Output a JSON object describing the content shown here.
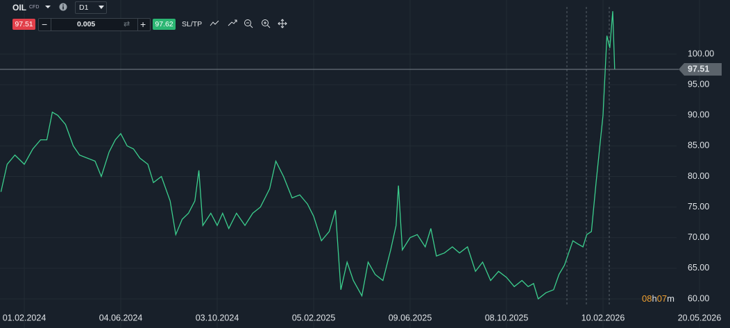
{
  "toolbar": {
    "symbol": "OIL",
    "kind": "CFD",
    "timeframe": "D1",
    "sell": "97.51",
    "volume": "0.005",
    "buy": "97.62",
    "sltp": "SL/TP"
  },
  "countdown": {
    "hours": "08",
    "hours_unit": "h",
    "minutes": "07",
    "minutes_unit": "m"
  },
  "chart_data": {
    "type": "line",
    "color": "#3ccf8e",
    "grid": true,
    "last_price": 97.51,
    "x": [
      "2024-01-02",
      "2024-01-10",
      "2024-01-20",
      "2024-02-01",
      "2024-02-12",
      "2024-02-22",
      "2024-03-01",
      "2024-03-08",
      "2024-03-15",
      "2024-03-25",
      "2024-04-04",
      "2024-04-12",
      "2024-04-22",
      "2024-05-02",
      "2024-05-10",
      "2024-05-20",
      "2024-05-28",
      "2024-06-04",
      "2024-06-12",
      "2024-06-20",
      "2024-06-28",
      "2024-07-08",
      "2024-07-15",
      "2024-07-25",
      "2024-08-05",
      "2024-08-12",
      "2024-08-20",
      "2024-08-28",
      "2024-09-05",
      "2024-09-10",
      "2024-09-15",
      "2024-09-25",
      "2024-10-03",
      "2024-10-10",
      "2024-10-18",
      "2024-10-28",
      "2024-11-08",
      "2024-11-18",
      "2024-11-28",
      "2024-12-10",
      "2024-12-18",
      "2024-12-28",
      "2025-01-08",
      "2025-01-18",
      "2025-01-28",
      "2025-02-05",
      "2025-02-15",
      "2025-02-25",
      "2025-03-05",
      "2025-03-12",
      "2025-03-20",
      "2025-03-28",
      "2025-04-08",
      "2025-04-16",
      "2025-04-25",
      "2025-05-05",
      "2025-05-15",
      "2025-05-22",
      "2025-05-25",
      "2025-05-30",
      "2025-06-09",
      "2025-06-18",
      "2025-06-28",
      "2025-07-05",
      "2025-07-12",
      "2025-07-22",
      "2025-08-01",
      "2025-08-10",
      "2025-08-20",
      "2025-08-30",
      "2025-09-08",
      "2025-09-18",
      "2025-09-28",
      "2025-10-08",
      "2025-10-18",
      "2025-10-28",
      "2025-11-05",
      "2025-11-12",
      "2025-11-18",
      "2025-11-28",
      "2025-12-08",
      "2025-12-15",
      "2025-12-22",
      "2026-01-02",
      "2026-01-08",
      "2026-01-15",
      "2026-01-20",
      "2026-01-26",
      "2026-02-01",
      "2026-02-10",
      "2026-02-14",
      "2026-02-17",
      "2026-02-20",
      "2026-02-22"
    ],
    "values": [
      77.5,
      82,
      83.5,
      82,
      84.5,
      86,
      86,
      90.5,
      90,
      88.5,
      85,
      83.5,
      83,
      82.5,
      80,
      84,
      86,
      87,
      85,
      84.5,
      83,
      82,
      79,
      80,
      76,
      70.5,
      73,
      74,
      76,
      81,
      72,
      74,
      72,
      74,
      71.5,
      74,
      72,
      74,
      75,
      78,
      82.5,
      80,
      76.5,
      77,
      75.5,
      73.5,
      69.5,
      71,
      74.5,
      61.5,
      66,
      63,
      60.5,
      66,
      64,
      63,
      68,
      72,
      78.5,
      68,
      70,
      70.5,
      68.5,
      71.5,
      67,
      67.5,
      68.5,
      67.5,
      68.5,
      64.5,
      66,
      63,
      64.5,
      63.5,
      62,
      63,
      62,
      62.5,
      60,
      61,
      61.5,
      64,
      65.5,
      69.5,
      69,
      68.5,
      70.5,
      71,
      79,
      90,
      103,
      101,
      107,
      97.51
    ],
    "ylim": [
      55.24,
      108.84
    ],
    "yticks": [
      {
        "value": 60,
        "label": "60.00"
      },
      {
        "value": 65,
        "label": "65.00"
      },
      {
        "value": 70,
        "label": "70.00"
      },
      {
        "value": 75,
        "label": "75.00"
      },
      {
        "value": 80,
        "label": "80.00"
      },
      {
        "value": 85,
        "label": "85.00"
      },
      {
        "value": 90,
        "label": "90.00"
      },
      {
        "value": 95,
        "label": "95.00"
      },
      {
        "value": 100,
        "label": "100.00"
      }
    ],
    "xticks": [
      {
        "value": "2024-02-01",
        "label": "01.02.2024"
      },
      {
        "value": "2024-06-04",
        "label": "04.06.2024"
      },
      {
        "value": "2024-10-03",
        "label": "03.10.2024"
      },
      {
        "value": "2025-02-05",
        "label": "05.02.2025"
      },
      {
        "value": "2025-06-09",
        "label": "09.06.2025"
      },
      {
        "value": "2025-10-08",
        "label": "08.10.2025"
      },
      {
        "value": "2026-02-10",
        "label": "10.02.2026"
      },
      {
        "value": "2026-05-20",
        "label": "20.05.2026"
      }
    ]
  }
}
